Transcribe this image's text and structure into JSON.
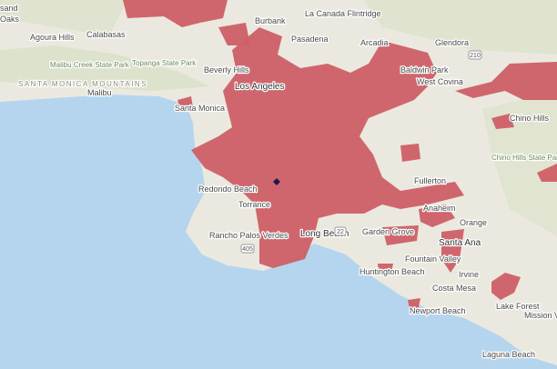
{
  "places": [
    "sand",
    "Oaks",
    "Agoura Hills",
    "Calabasas",
    "Malibu Creek State Park",
    "Topanga State Park",
    "SANTA MONICA MOUNTAINS",
    "Malibu",
    "Beverly Hills",
    "Santa Monica",
    "Burbank",
    "La Canada Flintridge",
    "Pasadena",
    "Arcadia",
    "Glendora",
    "Los Angeles",
    "Baldwin Park",
    "West Covina",
    "Chino Hills",
    "Chino Hills State Park",
    "Redondo Beach",
    "Torrance",
    "Rancho Palos Verdes",
    "Long Beach",
    "Garden Grove",
    "Fullerton",
    "Anaheim",
    "Orange",
    "Santa Ana",
    "Fountain Valley",
    "Huntington Beach",
    "Irvine",
    "Costa Mesa",
    "Newport Beach",
    "Lake Forest",
    "Mission Viejo",
    "Laguna Beach"
  ],
  "roads": [
    "210",
    "405",
    "22"
  ]
}
